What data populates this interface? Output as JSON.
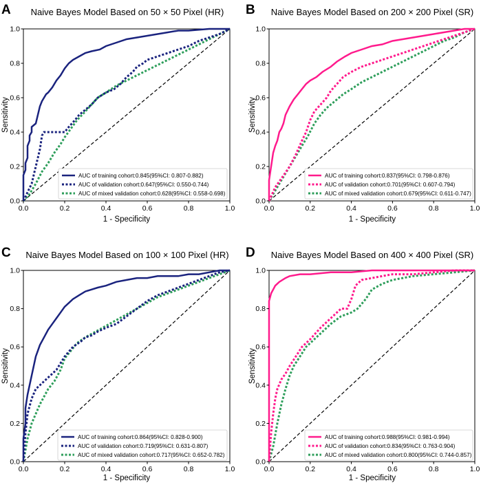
{
  "figure": {
    "background": "#ffffff"
  },
  "colors": {
    "hr_training": "#1a237e",
    "hr_validation": "#1a237e",
    "sr_training": "#ff1a8c",
    "sr_validation": "#ff1a8c",
    "mixed": "#2e9e5b",
    "diagonal": "#000000"
  },
  "chart_data": [
    {
      "panel": "A",
      "type": "line",
      "title": "Naive Bayes Model Based on 50 × 50 Pixel (HR)",
      "xlabel": "1 - Specificity",
      "ylabel": "Sensitivity",
      "xlim": [
        0,
        1
      ],
      "ylim": [
        0,
        1
      ],
      "xticks": [
        "0.0",
        "0.2",
        "0.4",
        "0.6",
        "0.8",
        "1.0"
      ],
      "yticks": [
        "0.0",
        "0.2",
        "0.4",
        "0.6",
        "0.8",
        "1.0"
      ],
      "legend_position": "bottom-right",
      "series": [
        {
          "name": "AUC of training cohort:0.845(95%CI: 0.807-0.882)",
          "style": "solid",
          "color_key": "hr_training",
          "x": [
            0,
            0,
            0.01,
            0.01,
            0.02,
            0.02,
            0.03,
            0.03,
            0.04,
            0.04,
            0.05,
            0.06,
            0.07,
            0.08,
            0.09,
            0.1,
            0.11,
            0.12,
            0.14,
            0.16,
            0.18,
            0.2,
            0.22,
            0.24,
            0.27,
            0.3,
            0.33,
            0.37,
            0.4,
            0.45,
            0.5,
            0.55,
            0.6,
            0.65,
            0.7,
            0.75,
            0.8,
            0.9,
            1.0
          ],
          "y": [
            0,
            0.15,
            0.18,
            0.22,
            0.25,
            0.32,
            0.35,
            0.38,
            0.4,
            0.43,
            0.44,
            0.45,
            0.5,
            0.55,
            0.58,
            0.6,
            0.62,
            0.63,
            0.66,
            0.7,
            0.73,
            0.77,
            0.8,
            0.82,
            0.84,
            0.86,
            0.87,
            0.88,
            0.9,
            0.92,
            0.94,
            0.95,
            0.96,
            0.97,
            0.98,
            0.99,
            0.99,
            1.0,
            1.0
          ]
        },
        {
          "name": "AUC of validation cohort:0.647(95%CI: 0.550-0.744)",
          "style": "dotted",
          "color_key": "hr_validation",
          "x": [
            0,
            0.02,
            0.04,
            0.06,
            0.08,
            0.09,
            0.1,
            0.12,
            0.15,
            0.2,
            0.22,
            0.25,
            0.27,
            0.3,
            0.33,
            0.36,
            0.4,
            0.44,
            0.47,
            0.5,
            0.53,
            0.55,
            0.58,
            0.6,
            0.65,
            0.7,
            0.75,
            0.8,
            0.85,
            0.9,
            0.95,
            1.0
          ],
          "y": [
            0,
            0.05,
            0.1,
            0.2,
            0.3,
            0.38,
            0.4,
            0.4,
            0.4,
            0.4,
            0.43,
            0.47,
            0.5,
            0.53,
            0.56,
            0.6,
            0.63,
            0.65,
            0.68,
            0.72,
            0.75,
            0.78,
            0.8,
            0.82,
            0.84,
            0.86,
            0.88,
            0.9,
            0.93,
            0.95,
            0.97,
            1.0
          ]
        },
        {
          "name": "AUC of mixed validation cohort:0.628(95%CI: 0.558-0.698)",
          "style": "dotted",
          "color_key": "mixed",
          "x": [
            0,
            0.03,
            0.06,
            0.09,
            0.12,
            0.15,
            0.18,
            0.2,
            0.23,
            0.26,
            0.3,
            0.33,
            0.36,
            0.4,
            0.45,
            0.5,
            0.55,
            0.6,
            0.65,
            0.7,
            0.75,
            0.8,
            0.85,
            0.9,
            0.95,
            1.0
          ],
          "y": [
            0,
            0.04,
            0.1,
            0.17,
            0.22,
            0.28,
            0.33,
            0.37,
            0.42,
            0.47,
            0.52,
            0.56,
            0.6,
            0.63,
            0.67,
            0.7,
            0.73,
            0.76,
            0.79,
            0.82,
            0.85,
            0.88,
            0.91,
            0.94,
            0.97,
            1.0
          ]
        },
        {
          "name": "",
          "style": "dashed",
          "color_key": "diagonal",
          "x": [
            0,
            1
          ],
          "y": [
            0,
            1
          ]
        }
      ]
    },
    {
      "panel": "B",
      "type": "line",
      "title": "Naive Bayes Model Based on 200 × 200 Pixel (SR)",
      "xlabel": "1 - Specificity",
      "ylabel": "Sensitivity",
      "xlim": [
        0,
        1
      ],
      "ylim": [
        0,
        1
      ],
      "xticks": [
        "0.0",
        "0.2",
        "0.4",
        "0.6",
        "0.8",
        "1.0"
      ],
      "yticks": [
        "0.0",
        "0.2",
        "0.4",
        "0.6",
        "0.8",
        "1.0"
      ],
      "legend_position": "bottom-right",
      "series": [
        {
          "name": "AUC of training cohort:0.837(95%CI: 0.798-0.876)",
          "style": "solid",
          "color_key": "sr_training",
          "x": [
            0,
            0,
            0.01,
            0.02,
            0.03,
            0.04,
            0.05,
            0.06,
            0.07,
            0.08,
            0.1,
            0.12,
            0.14,
            0.16,
            0.18,
            0.2,
            0.23,
            0.26,
            0.3,
            0.33,
            0.37,
            0.4,
            0.45,
            0.5,
            0.55,
            0.6,
            0.65,
            0.7,
            0.75,
            0.8,
            0.85,
            0.9,
            0.95,
            1.0
          ],
          "y": [
            0,
            0.12,
            0.2,
            0.28,
            0.32,
            0.35,
            0.4,
            0.42,
            0.45,
            0.5,
            0.55,
            0.59,
            0.62,
            0.65,
            0.68,
            0.7,
            0.72,
            0.75,
            0.78,
            0.81,
            0.84,
            0.86,
            0.88,
            0.9,
            0.91,
            0.93,
            0.94,
            0.95,
            0.96,
            0.97,
            0.98,
            0.99,
            1.0,
            1.0
          ]
        },
        {
          "name": "AUC of validation cohort:0.701(95%CI: 0.607-0.794)",
          "style": "dotted",
          "color_key": "sr_validation",
          "x": [
            0,
            0.03,
            0.06,
            0.1,
            0.13,
            0.16,
            0.18,
            0.2,
            0.22,
            0.25,
            0.28,
            0.3,
            0.33,
            0.36,
            0.4,
            0.45,
            0.5,
            0.55,
            0.6,
            0.65,
            0.7,
            0.75,
            0.8,
            0.85,
            0.9,
            0.95,
            1.0
          ],
          "y": [
            0,
            0.08,
            0.13,
            0.2,
            0.27,
            0.35,
            0.4,
            0.47,
            0.52,
            0.56,
            0.6,
            0.64,
            0.68,
            0.72,
            0.75,
            0.78,
            0.8,
            0.82,
            0.84,
            0.86,
            0.88,
            0.9,
            0.92,
            0.94,
            0.96,
            0.98,
            1.0
          ]
        },
        {
          "name": "AUC of mixed validation cohort:0.679(95%CI: 0.611-0.747)",
          "style": "dotted",
          "color_key": "mixed",
          "x": [
            0,
            0.03,
            0.06,
            0.1,
            0.13,
            0.16,
            0.19,
            0.22,
            0.25,
            0.28,
            0.32,
            0.36,
            0.4,
            0.45,
            0.5,
            0.55,
            0.6,
            0.65,
            0.7,
            0.75,
            0.8,
            0.85,
            0.9,
            0.95,
            1.0
          ],
          "y": [
            0,
            0.06,
            0.12,
            0.2,
            0.26,
            0.32,
            0.38,
            0.45,
            0.5,
            0.54,
            0.58,
            0.62,
            0.65,
            0.69,
            0.72,
            0.75,
            0.78,
            0.81,
            0.84,
            0.87,
            0.9,
            0.93,
            0.95,
            0.98,
            1.0
          ]
        },
        {
          "name": "",
          "style": "dashed",
          "color_key": "diagonal",
          "x": [
            0,
            1
          ],
          "y": [
            0,
            1
          ]
        }
      ]
    },
    {
      "panel": "C",
      "type": "line",
      "title": "Naive Bayes Model Based on 100 × 100 Pixel (HR)",
      "xlabel": "1 - Specificity",
      "ylabel": "Sensitivity",
      "xlim": [
        0,
        1
      ],
      "ylim": [
        0,
        1
      ],
      "xticks": [
        "0.0",
        "0.2",
        "0.4",
        "0.6",
        "0.8",
        "1.0"
      ],
      "yticks": [
        "0.0",
        "0.2",
        "0.4",
        "0.6",
        "0.8",
        "1.0"
      ],
      "legend_position": "bottom-right",
      "series": [
        {
          "name": "AUC of training cohort:0.864(95%CI: 0.828-0.900)",
          "style": "solid",
          "color_key": "hr_training",
          "x": [
            0,
            0,
            0.01,
            0.01,
            0.02,
            0.03,
            0.04,
            0.05,
            0.06,
            0.07,
            0.08,
            0.1,
            0.12,
            0.14,
            0.16,
            0.18,
            0.2,
            0.22,
            0.24,
            0.27,
            0.3,
            0.33,
            0.36,
            0.4,
            0.45,
            0.5,
            0.55,
            0.6,
            0.65,
            0.7,
            0.75,
            0.8,
            0.85,
            0.9,
            0.95,
            1.0
          ],
          "y": [
            0,
            0.12,
            0.2,
            0.28,
            0.35,
            0.4,
            0.45,
            0.5,
            0.55,
            0.58,
            0.61,
            0.65,
            0.69,
            0.72,
            0.75,
            0.78,
            0.81,
            0.83,
            0.85,
            0.87,
            0.89,
            0.9,
            0.91,
            0.92,
            0.94,
            0.95,
            0.96,
            0.96,
            0.97,
            0.97,
            0.97,
            0.98,
            0.98,
            0.99,
            1.0,
            1.0
          ]
        },
        {
          "name": "AUC of validation cohort:0.719(95%CI: 0.631-0.807)",
          "style": "dotted",
          "color_key": "hr_validation",
          "x": [
            0,
            0.01,
            0.02,
            0.04,
            0.06,
            0.08,
            0.1,
            0.13,
            0.16,
            0.2,
            0.24,
            0.28,
            0.3,
            0.33,
            0.36,
            0.4,
            0.45,
            0.5,
            0.55,
            0.6,
            0.65,
            0.7,
            0.75,
            0.8,
            0.85,
            0.9,
            0.95,
            1.0
          ],
          "y": [
            0,
            0.15,
            0.25,
            0.33,
            0.38,
            0.4,
            0.42,
            0.45,
            0.48,
            0.55,
            0.6,
            0.63,
            0.65,
            0.66,
            0.68,
            0.7,
            0.72,
            0.76,
            0.8,
            0.84,
            0.87,
            0.89,
            0.91,
            0.93,
            0.95,
            0.97,
            0.99,
            1.0
          ]
        },
        {
          "name": "AUC of mixed validation cohort:0.717(95%CI: 0.652-0.782)",
          "style": "dotted",
          "color_key": "mixed",
          "x": [
            0,
            0.02,
            0.04,
            0.06,
            0.08,
            0.1,
            0.12,
            0.15,
            0.18,
            0.2,
            0.23,
            0.26,
            0.3,
            0.35,
            0.4,
            0.45,
            0.5,
            0.55,
            0.6,
            0.65,
            0.7,
            0.75,
            0.8,
            0.85,
            0.9,
            0.95,
            1.0
          ],
          "y": [
            0,
            0.12,
            0.2,
            0.25,
            0.3,
            0.34,
            0.38,
            0.42,
            0.48,
            0.54,
            0.58,
            0.62,
            0.65,
            0.68,
            0.71,
            0.74,
            0.77,
            0.8,
            0.83,
            0.86,
            0.88,
            0.9,
            0.92,
            0.94,
            0.96,
            0.98,
            1.0
          ]
        },
        {
          "name": "",
          "style": "dashed",
          "color_key": "diagonal",
          "x": [
            0,
            1
          ],
          "y": [
            0,
            1
          ]
        }
      ]
    },
    {
      "panel": "D",
      "type": "line",
      "title": "Naive Bayes Model Based on 400 × 400 Pixel (SR)",
      "xlabel": "1 - Specificity",
      "ylabel": "Sensitivity",
      "xlim": [
        0,
        1
      ],
      "ylim": [
        0,
        1
      ],
      "xticks": [
        "0.0",
        "0.2",
        "0.4",
        "0.6",
        "0.8",
        "1.0"
      ],
      "yticks": [
        "0.0",
        "0.2",
        "0.4",
        "0.6",
        "0.8",
        "1.0"
      ],
      "legend_position": "bottom-right",
      "series": [
        {
          "name": "AUC of training cohort:0.988(95%CI: 0.981-0.994)",
          "style": "solid",
          "color_key": "sr_training",
          "x": [
            0,
            0,
            0.01,
            0.02,
            0.03,
            0.05,
            0.08,
            0.1,
            0.15,
            0.2,
            0.3,
            0.4,
            0.5,
            0.6,
            0.8,
            1.0
          ],
          "y": [
            0,
            0.84,
            0.88,
            0.9,
            0.92,
            0.94,
            0.96,
            0.97,
            0.98,
            0.98,
            0.99,
            0.99,
            1.0,
            1.0,
            1.0,
            1.0
          ]
        },
        {
          "name": "AUC of validation cohort:0.834(95%CI: 0.763-0.904)",
          "style": "dotted",
          "color_key": "sr_validation",
          "x": [
            0,
            0.01,
            0.02,
            0.03,
            0.04,
            0.06,
            0.08,
            0.1,
            0.13,
            0.16,
            0.2,
            0.25,
            0.3,
            0.35,
            0.38,
            0.4,
            0.42,
            0.45,
            0.5,
            0.55,
            0.6,
            0.7,
            0.8,
            0.9,
            1.0
          ],
          "y": [
            0,
            0.15,
            0.25,
            0.33,
            0.38,
            0.43,
            0.46,
            0.5,
            0.55,
            0.6,
            0.64,
            0.7,
            0.75,
            0.8,
            0.8,
            0.85,
            0.92,
            0.95,
            0.96,
            0.97,
            0.98,
            0.98,
            0.99,
            1.0,
            1.0
          ]
        },
        {
          "name": "AUC of mixed validation cohort:0.800(95%CI: 0.744-0.857)",
          "style": "dotted",
          "color_key": "mixed",
          "x": [
            0,
            0.02,
            0.04,
            0.06,
            0.08,
            0.1,
            0.12,
            0.15,
            0.18,
            0.22,
            0.26,
            0.3,
            0.35,
            0.4,
            0.43,
            0.47,
            0.5,
            0.55,
            0.6,
            0.65,
            0.7,
            0.8,
            0.9,
            1.0
          ],
          "y": [
            0,
            0.08,
            0.2,
            0.3,
            0.38,
            0.45,
            0.5,
            0.55,
            0.6,
            0.64,
            0.68,
            0.72,
            0.76,
            0.78,
            0.8,
            0.85,
            0.9,
            0.93,
            0.95,
            0.96,
            0.97,
            0.98,
            0.99,
            1.0
          ]
        },
        {
          "name": "",
          "style": "dashed",
          "color_key": "diagonal",
          "x": [
            0,
            1
          ],
          "y": [
            0,
            1
          ]
        }
      ]
    }
  ]
}
